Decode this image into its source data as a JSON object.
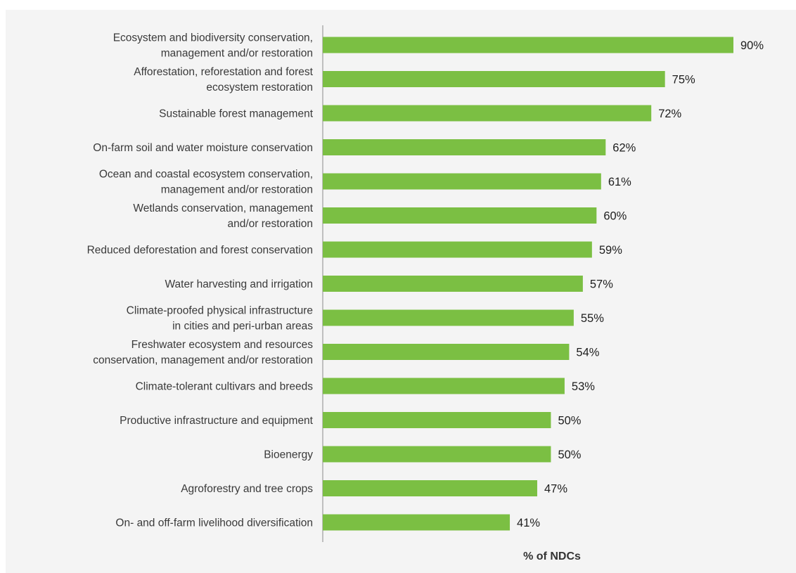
{
  "chart_data": {
    "type": "bar",
    "orientation": "horizontal",
    "categories": [
      [
        "Ecosystem and biodiversity conservation,",
        "management and/or restoration"
      ],
      [
        "Afforestation, reforestation and forest",
        "ecosystem restoration"
      ],
      [
        "Sustainable forest management"
      ],
      [
        "On-farm soil and water moisture conservation"
      ],
      [
        "Ocean and coastal ecosystem conservation,",
        "management and/or restoration"
      ],
      [
        "Wetlands conservation, management",
        "and/or restoration"
      ],
      [
        "Reduced deforestation and forest conservation"
      ],
      [
        "Water harvesting and irrigation"
      ],
      [
        "Climate-proofed physical infrastructure",
        "in cities and peri-urban areas"
      ],
      [
        "Freshwater ecosystem and resources",
        "conservation, management and/or restoration"
      ],
      [
        "Climate-tolerant cultivars and breeds"
      ],
      [
        "Productive infrastructure and equipment"
      ],
      [
        "Bioenergy"
      ],
      [
        "Agroforestry and tree crops"
      ],
      [
        "On- and off-farm livelihood diversification"
      ]
    ],
    "values": [
      90,
      75,
      72,
      62,
      61,
      60,
      59,
      57,
      55,
      54,
      53,
      50,
      50,
      47,
      41
    ],
    "value_labels": [
      "90%",
      "75%",
      "72%",
      "62%",
      "61%",
      "60%",
      "59%",
      "57%",
      "55%",
      "54%",
      "53%",
      "50%",
      "50%",
      "47%",
      "41%"
    ],
    "xlabel": "% of NDCs",
    "xlim": [
      0,
      90
    ],
    "grid": false,
    "colors": {
      "bar": "#7bbf43",
      "axis": "#8a8a8a",
      "background": "#f4f4f4"
    }
  }
}
